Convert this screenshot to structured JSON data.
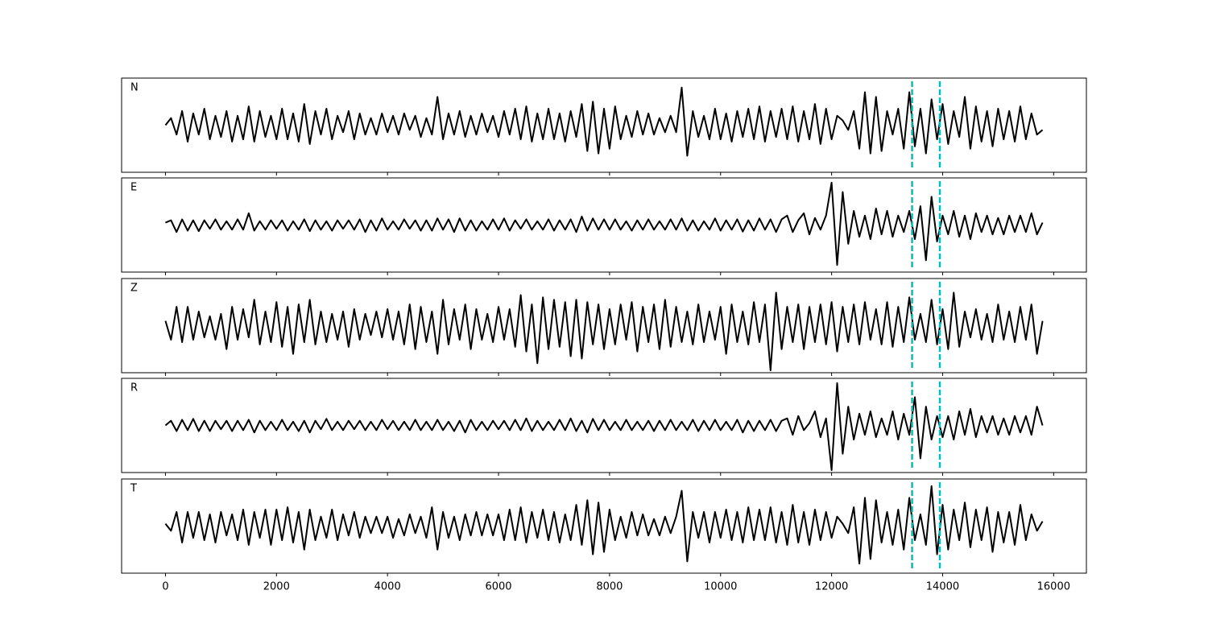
{
  "chart_data": {
    "type": "line",
    "layout": "stacked",
    "x": [
      0,
      100,
      200,
      300,
      400,
      500,
      600,
      700,
      800,
      900,
      1000,
      1100,
      1200,
      1300,
      1400,
      1500,
      1600,
      1700,
      1800,
      1900,
      2000,
      2100,
      2200,
      2300,
      2400,
      2500,
      2600,
      2700,
      2800,
      2900,
      3000,
      3100,
      3200,
      3300,
      3400,
      3500,
      3600,
      3700,
      3800,
      3900,
      4000,
      4100,
      4200,
      4300,
      4400,
      4500,
      4600,
      4700,
      4800,
      4900,
      5000,
      5100,
      5200,
      5300,
      5400,
      5500,
      5600,
      5700,
      5800,
      5900,
      6000,
      6100,
      6200,
      6300,
      6400,
      6500,
      6600,
      6700,
      6800,
      6900,
      7000,
      7100,
      7200,
      7300,
      7400,
      7500,
      7600,
      7700,
      7800,
      7900,
      8000,
      8100,
      8200,
      8300,
      8400,
      8500,
      8600,
      8700,
      8800,
      8900,
      9000,
      9100,
      9200,
      9300,
      9400,
      9500,
      9600,
      9700,
      9800,
      9900,
      10000,
      10100,
      10200,
      10300,
      10400,
      10500,
      10600,
      10700,
      10800,
      10900,
      11000,
      11100,
      11200,
      11300,
      11400,
      11500,
      11600,
      11700,
      11800,
      11900,
      12000,
      12100,
      12200,
      12300,
      12400,
      12500,
      12600,
      12700,
      12800,
      12900,
      13000,
      13100,
      13200,
      13300,
      13400,
      13500,
      13600,
      13700,
      13800,
      13900,
      14000,
      14100,
      14200,
      14300,
      14400,
      14500,
      14600,
      14700,
      14800,
      14900,
      15000,
      15100,
      15200,
      15300,
      15400,
      15500,
      15600,
      15700,
      15800
    ],
    "xlim": [
      -790,
      16590
    ],
    "xticks": [
      0,
      2000,
      4000,
      6000,
      8000,
      10000,
      12000,
      14000,
      16000
    ],
    "ylim": [
      -1,
      1
    ],
    "line_color": "#000000",
    "vlines": {
      "x": [
        13450,
        13950
      ],
      "color": "#00bfbf",
      "dashed": true
    },
    "series": [
      {
        "name": "N",
        "values": [
          0.0,
          0.15,
          -0.2,
          0.3,
          -0.35,
          0.25,
          -0.2,
          0.35,
          -0.3,
          0.2,
          -0.25,
          0.3,
          -0.35,
          0.2,
          -0.3,
          0.4,
          -0.35,
          0.3,
          -0.25,
          0.2,
          -0.3,
          0.35,
          -0.3,
          0.25,
          -0.35,
          0.45,
          -0.4,
          0.3,
          -0.2,
          0.35,
          -0.3,
          0.2,
          -0.15,
          0.3,
          -0.3,
          0.25,
          -0.2,
          0.15,
          -0.2,
          0.25,
          -0.15,
          0.2,
          -0.2,
          0.25,
          -0.1,
          0.2,
          -0.25,
          0.15,
          -0.2,
          0.6,
          -0.3,
          0.25,
          -0.2,
          0.3,
          -0.25,
          0.2,
          -0.2,
          0.25,
          -0.15,
          0.2,
          -0.25,
          0.3,
          -0.2,
          0.35,
          -0.3,
          0.4,
          -0.35,
          0.25,
          -0.3,
          0.35,
          -0.3,
          0.25,
          -0.35,
          0.3,
          -0.25,
          0.45,
          -0.55,
          0.5,
          -0.6,
          0.35,
          -0.5,
          0.4,
          -0.3,
          0.2,
          -0.25,
          0.3,
          -0.2,
          0.25,
          -0.2,
          0.15,
          -0.15,
          0.2,
          -0.15,
          0.8,
          -0.65,
          0.3,
          -0.25,
          0.2,
          -0.3,
          0.35,
          -0.3,
          0.25,
          -0.35,
          0.3,
          -0.25,
          0.35,
          -0.3,
          0.4,
          -0.35,
          0.3,
          -0.25,
          0.35,
          -0.3,
          0.4,
          -0.35,
          0.3,
          -0.3,
          0.45,
          -0.4,
          0.35,
          -0.3,
          0.2,
          0.1,
          -0.1,
          0.3,
          -0.5,
          0.7,
          -0.6,
          0.6,
          -0.55,
          0.3,
          -0.2,
          0.35,
          -0.5,
          0.7,
          -0.45,
          0.35,
          -0.6,
          0.55,
          -0.3,
          0.45,
          -0.4,
          0.3,
          -0.25,
          0.6,
          -0.5,
          0.4,
          -0.35,
          0.3,
          -0.45,
          0.35,
          -0.3,
          0.3,
          -0.35,
          0.4,
          -0.3,
          0.25,
          -0.2,
          -0.1
        ]
      },
      {
        "name": "E",
        "values": [
          0.05,
          0.1,
          -0.15,
          0.12,
          -0.12,
          0.1,
          -0.13,
          0.1,
          -0.08,
          0.12,
          -0.1,
          0.08,
          -0.1,
          0.12,
          -0.1,
          0.25,
          -0.12,
          0.08,
          -0.1,
          0.1,
          -0.08,
          0.1,
          -0.12,
          0.08,
          -0.1,
          0.12,
          -0.13,
          0.1,
          -0.1,
          0.08,
          -0.12,
          0.1,
          -0.08,
          0.1,
          -0.1,
          0.12,
          -0.15,
          0.1,
          -0.12,
          0.14,
          -0.1,
          0.08,
          -0.1,
          0.12,
          -0.08,
          0.1,
          -0.12,
          0.1,
          -0.12,
          0.14,
          -0.1,
          0.12,
          -0.15,
          0.14,
          -0.12,
          0.1,
          -0.12,
          0.08,
          -0.1,
          0.12,
          -0.1,
          0.14,
          -0.12,
          0.1,
          -0.08,
          0.12,
          -0.1,
          0.08,
          -0.1,
          0.12,
          -0.12,
          0.1,
          -0.1,
          0.12,
          -0.15,
          0.18,
          -0.12,
          0.14,
          -0.1,
          0.12,
          -0.1,
          0.12,
          -0.1,
          0.08,
          -0.12,
          0.1,
          -0.1,
          0.12,
          -0.1,
          0.08,
          -0.1,
          0.12,
          -0.1,
          0.14,
          -0.12,
          0.1,
          -0.12,
          0.08,
          -0.1,
          0.14,
          -0.12,
          0.1,
          -0.1,
          0.12,
          -0.14,
          0.1,
          -0.12,
          0.14,
          -0.1,
          0.12,
          -0.15,
          0.12,
          0.2,
          -0.15,
          0.1,
          0.25,
          -0.2,
          0.15,
          -0.1,
          0.2,
          0.9,
          -0.85,
          0.7,
          -0.4,
          0.3,
          -0.25,
          0.2,
          -0.3,
          0.35,
          -0.2,
          0.3,
          -0.25,
          0.2,
          -0.15,
          0.3,
          -0.3,
          0.4,
          -0.75,
          0.6,
          -0.35,
          0.2,
          -0.2,
          0.3,
          -0.25,
          0.2,
          -0.3,
          0.25,
          -0.15,
          0.2,
          -0.2,
          0.15,
          -0.2,
          0.2,
          -0.15,
          0.2,
          -0.15,
          0.25,
          -0.2,
          0.05
        ]
      },
      {
        "name": "Z",
        "values": [
          0.1,
          -0.3,
          0.4,
          -0.35,
          0.4,
          -0.3,
          0.3,
          -0.25,
          0.2,
          -0.3,
          0.25,
          -0.5,
          0.4,
          -0.3,
          0.35,
          -0.25,
          0.55,
          -0.4,
          0.3,
          -0.35,
          0.5,
          -0.45,
          0.4,
          -0.6,
          0.45,
          -0.35,
          0.55,
          -0.4,
          0.3,
          -0.35,
          0.25,
          -0.3,
          0.3,
          -0.45,
          0.35,
          -0.3,
          0.25,
          -0.2,
          0.3,
          -0.25,
          0.35,
          -0.3,
          0.3,
          -0.4,
          0.45,
          -0.5,
          0.4,
          -0.35,
          0.3,
          -0.6,
          0.55,
          -0.4,
          0.35,
          -0.3,
          0.45,
          -0.5,
          0.35,
          -0.3,
          0.25,
          -0.35,
          0.4,
          -0.3,
          0.35,
          -0.45,
          0.65,
          -0.55,
          0.45,
          -0.8,
          0.6,
          -0.5,
          0.55,
          -0.45,
          0.5,
          -0.65,
          0.55,
          -0.7,
          0.5,
          -0.4,
          0.45,
          -0.5,
          0.35,
          -0.4,
          0.45,
          -0.3,
          0.5,
          -0.55,
          0.4,
          -0.35,
          0.45,
          -0.5,
          0.55,
          -0.45,
          0.4,
          -0.35,
          0.3,
          -0.4,
          0.45,
          -0.35,
          0.3,
          -0.3,
          0.4,
          -0.6,
          0.45,
          -0.35,
          0.3,
          -0.4,
          0.5,
          -0.35,
          0.45,
          -0.95,
          0.7,
          -0.5,
          0.4,
          -0.35,
          0.45,
          -0.5,
          0.4,
          -0.35,
          0.45,
          -0.4,
          0.5,
          -0.55,
          0.4,
          -0.35,
          0.45,
          -0.4,
          0.5,
          -0.3,
          0.35,
          -0.4,
          0.5,
          -0.45,
          0.4,
          -0.35,
          0.6,
          -0.3,
          0.25,
          -0.35,
          0.55,
          -0.4,
          0.35,
          -0.5,
          0.7,
          -0.45,
          0.3,
          -0.25,
          0.35,
          -0.3,
          0.25,
          -0.35,
          0.45,
          -0.3,
          0.3,
          -0.35,
          0.4,
          -0.3,
          0.45,
          -0.6,
          0.1
        ]
      },
      {
        "name": "R",
        "values": [
          0.0,
          0.1,
          -0.12,
          0.12,
          -0.1,
          0.14,
          -0.12,
          0.1,
          -0.12,
          0.1,
          -0.08,
          0.1,
          -0.12,
          0.1,
          -0.1,
          0.12,
          -0.15,
          0.1,
          -0.1,
          0.08,
          -0.1,
          0.12,
          -0.1,
          0.08,
          -0.12,
          0.1,
          -0.15,
          0.1,
          -0.08,
          0.14,
          -0.1,
          0.08,
          -0.1,
          0.1,
          -0.08,
          0.1,
          -0.1,
          0.08,
          -0.1,
          0.12,
          -0.08,
          0.1,
          -0.1,
          0.08,
          -0.1,
          0.12,
          -0.1,
          0.08,
          -0.1,
          0.12,
          -0.1,
          0.08,
          -0.12,
          0.1,
          -0.15,
          0.12,
          -0.1,
          0.08,
          -0.1,
          0.1,
          -0.08,
          0.1,
          -0.1,
          0.12,
          -0.1,
          0.15,
          -0.12,
          0.1,
          -0.1,
          0.08,
          -0.1,
          0.12,
          -0.1,
          0.15,
          -0.12,
          0.1,
          -0.15,
          0.14,
          -0.1,
          0.12,
          -0.1,
          0.08,
          -0.1,
          0.12,
          -0.1,
          0.08,
          -0.1,
          0.1,
          -0.12,
          0.1,
          -0.1,
          0.12,
          -0.1,
          0.08,
          -0.1,
          0.12,
          -0.12,
          0.1,
          -0.1,
          0.12,
          -0.1,
          0.08,
          -0.1,
          0.12,
          -0.15,
          0.1,
          -0.12,
          0.1,
          -0.1,
          0.12,
          -0.12,
          0.1,
          0.15,
          -0.2,
          0.2,
          -0.1,
          0.05,
          0.3,
          -0.25,
          0.15,
          -0.95,
          0.9,
          -0.6,
          0.4,
          -0.3,
          0.25,
          -0.2,
          0.3,
          -0.25,
          0.15,
          -0.2,
          0.3,
          -0.3,
          0.25,
          -0.2,
          0.6,
          -0.7,
          0.4,
          -0.3,
          0.2,
          -0.25,
          0.2,
          -0.3,
          0.3,
          -0.2,
          0.35,
          -0.25,
          0.2,
          -0.15,
          0.2,
          -0.2,
          0.15,
          -0.2,
          0.2,
          -0.15,
          0.2,
          -0.2,
          0.4,
          0.0
        ]
      },
      {
        "name": "T",
        "values": [
          0.05,
          -0.1,
          0.3,
          -0.35,
          0.3,
          -0.25,
          0.3,
          -0.3,
          0.25,
          -0.35,
          0.3,
          -0.2,
          0.25,
          -0.3,
          0.35,
          -0.4,
          0.3,
          -0.25,
          0.35,
          -0.4,
          0.35,
          -0.3,
          0.4,
          -0.35,
          0.3,
          -0.5,
          0.35,
          -0.3,
          0.2,
          -0.25,
          0.35,
          -0.3,
          0.25,
          -0.2,
          0.3,
          -0.25,
          0.2,
          -0.15,
          0.2,
          -0.15,
          0.2,
          -0.25,
          0.15,
          -0.2,
          0.25,
          -0.15,
          0.2,
          -0.25,
          0.4,
          -0.5,
          0.3,
          -0.25,
          0.2,
          -0.3,
          0.25,
          -0.2,
          0.3,
          -0.2,
          0.25,
          -0.2,
          0.25,
          -0.3,
          0.35,
          -0.3,
          0.4,
          -0.35,
          0.3,
          -0.25,
          0.35,
          -0.3,
          0.3,
          -0.35,
          0.25,
          -0.3,
          0.45,
          -0.4,
          0.55,
          -0.6,
          0.5,
          -0.55,
          0.35,
          -0.3,
          0.2,
          -0.25,
          0.3,
          -0.2,
          0.25,
          -0.2,
          0.15,
          -0.2,
          0.2,
          -0.15,
          0.2,
          0.75,
          -0.75,
          0.3,
          -0.25,
          0.3,
          -0.35,
          0.3,
          -0.25,
          0.35,
          -0.3,
          0.3,
          -0.35,
          0.4,
          -0.3,
          0.35,
          -0.3,
          0.4,
          -0.35,
          0.3,
          -0.4,
          0.45,
          -0.35,
          0.3,
          -0.4,
          0.35,
          -0.3,
          0.3,
          -0.25,
          0.2,
          0.05,
          -0.15,
          0.4,
          -0.8,
          0.6,
          -0.7,
          0.55,
          -0.35,
          0.3,
          -0.4,
          0.35,
          -0.5,
          0.6,
          -0.3,
          0.25,
          -0.4,
          0.85,
          -0.6,
          0.45,
          -0.5,
          0.35,
          -0.3,
          0.5,
          -0.45,
          0.35,
          -0.3,
          0.4,
          -0.55,
          0.3,
          -0.35,
          0.3,
          -0.4,
          0.45,
          -0.3,
          0.25,
          -0.1,
          0.1
        ]
      }
    ]
  }
}
